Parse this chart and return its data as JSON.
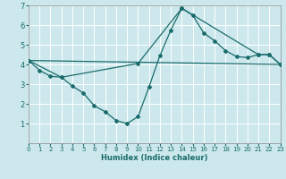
{
  "xlabel": "Humidex (Indice chaleur)",
  "bg_color": "#cce8ec",
  "line_color": "#1a6b6b",
  "grid_color": "#ffffff",
  "xlim": [
    0,
    23
  ],
  "ylim": [
    0,
    7
  ],
  "xticks": [
    0,
    1,
    2,
    3,
    4,
    5,
    6,
    7,
    8,
    9,
    10,
    11,
    12,
    13,
    14,
    15,
    16,
    17,
    18,
    19,
    20,
    21,
    22,
    23
  ],
  "yticks": [
    1,
    2,
    3,
    4,
    5,
    6,
    7
  ],
  "line1_x": [
    0,
    1,
    2,
    3,
    4,
    5,
    6,
    7,
    8,
    9,
    10,
    11,
    12,
    13,
    14,
    15,
    16,
    17,
    18,
    19,
    20,
    21,
    22,
    23
  ],
  "line1_y": [
    4.2,
    3.7,
    3.4,
    3.35,
    2.9,
    2.55,
    1.9,
    1.6,
    1.15,
    1.0,
    1.35,
    2.85,
    4.45,
    5.75,
    6.85,
    6.5,
    5.6,
    5.2,
    4.7,
    4.4,
    4.35,
    4.5,
    4.5,
    4.0
  ],
  "line2_x": [
    0,
    3,
    10,
    14,
    21,
    22,
    23
  ],
  "line2_y": [
    4.2,
    3.35,
    4.05,
    6.85,
    4.5,
    4.5,
    4.0
  ],
  "line3_x": [
    0,
    23
  ],
  "line3_y": [
    4.2,
    4.0
  ]
}
